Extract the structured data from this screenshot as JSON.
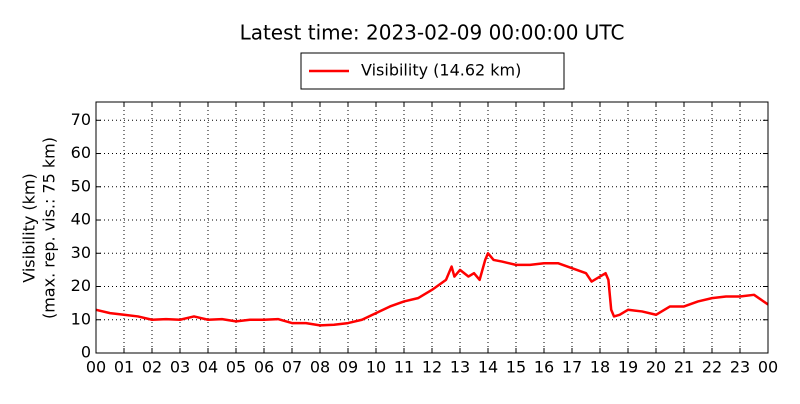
{
  "chart_data": {
    "type": "line",
    "title": "Latest time: 2023-02-09 00:00:00 UTC",
    "ylabel": [
      "Visibility (km)",
      "(max. rep. vis.: 75 km)"
    ],
    "grid": true,
    "xlim": [
      0,
      24
    ],
    "ylim": [
      0,
      75.5
    ],
    "xticks": [
      {
        "value": 0,
        "label": "00"
      },
      {
        "value": 1,
        "label": "01"
      },
      {
        "value": 2,
        "label": "02"
      },
      {
        "value": 3,
        "label": "03"
      },
      {
        "value": 4,
        "label": "04"
      },
      {
        "value": 5,
        "label": "05"
      },
      {
        "value": 6,
        "label": "06"
      },
      {
        "value": 7,
        "label": "07"
      },
      {
        "value": 8,
        "label": "08"
      },
      {
        "value": 9,
        "label": "09"
      },
      {
        "value": 10,
        "label": "10"
      },
      {
        "value": 11,
        "label": "11"
      },
      {
        "value": 12,
        "label": "12"
      },
      {
        "value": 13,
        "label": "13"
      },
      {
        "value": 14,
        "label": "14"
      },
      {
        "value": 15,
        "label": "15"
      },
      {
        "value": 16,
        "label": "16"
      },
      {
        "value": 17,
        "label": "17"
      },
      {
        "value": 18,
        "label": "18"
      },
      {
        "value": 19,
        "label": "19"
      },
      {
        "value": 20,
        "label": "20"
      },
      {
        "value": 21,
        "label": "21"
      },
      {
        "value": 22,
        "label": "22"
      },
      {
        "value": 23,
        "label": "23"
      },
      {
        "value": 24,
        "label": "00"
      }
    ],
    "yticks": [
      0,
      10,
      20,
      30,
      40,
      50,
      60,
      70
    ],
    "x": [
      0,
      0.5,
      1,
      1.5,
      2,
      2.5,
      3,
      3.5,
      4,
      4.5,
      5,
      5.5,
      6,
      6.5,
      7,
      7.5,
      8,
      8.5,
      9,
      9.5,
      10,
      10.5,
      11,
      11.5,
      12,
      12.5,
      12.7,
      12.8,
      13,
      13.3,
      13.5,
      13.7,
      13.9,
      14,
      14.2,
      14.5,
      15,
      15.5,
      16,
      16.5,
      17,
      17.5,
      17.7,
      18,
      18.2,
      18.3,
      18.4,
      18.5,
      18.7,
      19,
      19.5,
      20,
      20.5,
      21,
      21.5,
      22,
      22.5,
      23,
      23.5,
      24
    ],
    "series": [
      {
        "name": "Visibility (14.62 km)",
        "color": "#ff0000",
        "values": [
          13,
          12,
          11.5,
          11,
          10,
          10.2,
          10,
          11,
          10,
          10.2,
          9.5,
          10,
          10,
          10.2,
          9,
          9,
          8.3,
          8.5,
          9,
          10,
          12,
          14,
          15.5,
          16.5,
          19,
          22,
          26,
          23,
          25,
          23,
          24,
          22,
          28,
          30,
          28,
          27.5,
          26.5,
          26.5,
          27,
          27,
          25.5,
          24,
          21.5,
          23,
          24,
          22,
          13,
          11,
          11.5,
          13,
          12.5,
          11.5,
          14,
          14,
          15.5,
          16.5,
          17,
          17,
          17.5,
          14.6
        ]
      }
    ]
  }
}
